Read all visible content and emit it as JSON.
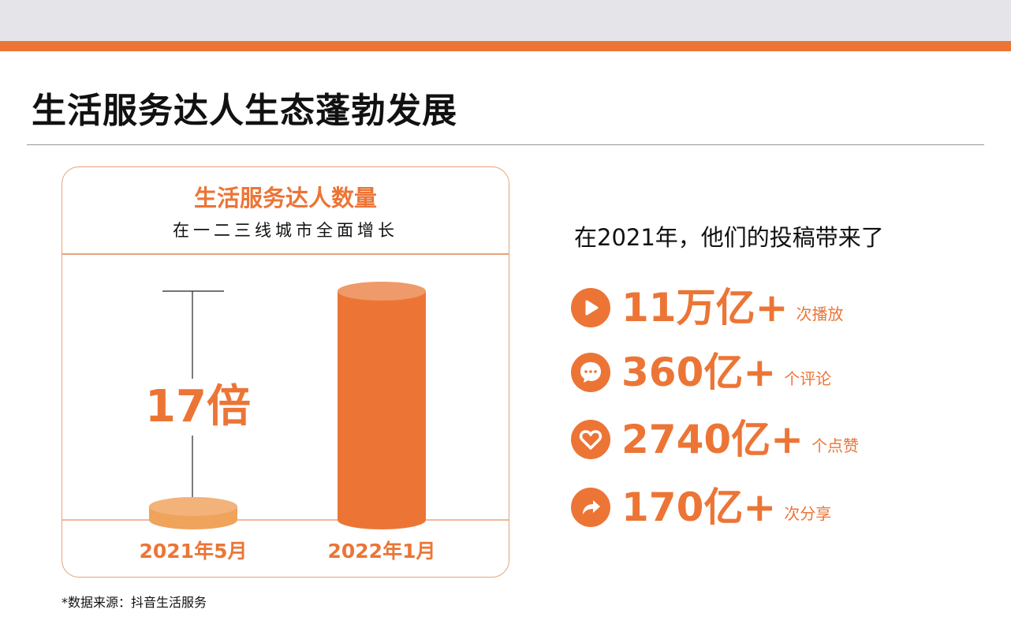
{
  "title": "生活服务达人生态蓬勃发展",
  "card": {
    "title": "生活服务达人数量",
    "subtitle": "在一二三线城市全面增长"
  },
  "chart_data": {
    "type": "bar",
    "categories": [
      "2021年5月",
      "2022年1月"
    ],
    "values": [
      1,
      17
    ],
    "annotation": "17倍",
    "color": "#ec7536",
    "grid": false
  },
  "right": {
    "heading": "在2021年，他们的投稿带来了",
    "stats": [
      {
        "icon": "play-icon",
        "value": "11万亿+",
        "unit": "次播放"
      },
      {
        "icon": "comment-icon",
        "value": "360亿+",
        "unit": "个评论"
      },
      {
        "icon": "heart-icon",
        "value": "2740亿+",
        "unit": "个点赞"
      },
      {
        "icon": "share-icon",
        "value": "170亿+",
        "unit": "次分享"
      }
    ]
  },
  "footer": "*数据来源：抖音生活服务",
  "colors": {
    "accent": "#ec7536",
    "band": "#e5e4e9"
  }
}
